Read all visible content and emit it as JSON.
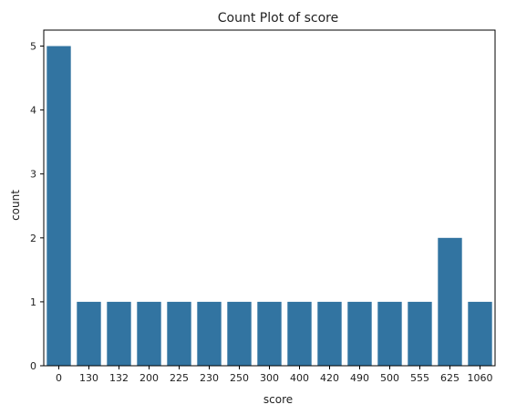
{
  "chart_data": {
    "type": "bar",
    "title": "Count Plot of score",
    "xlabel": "score",
    "ylabel": "count",
    "categories": [
      "0",
      "130",
      "132",
      "200",
      "225",
      "230",
      "250",
      "300",
      "400",
      "420",
      "490",
      "500",
      "555",
      "625",
      "1060"
    ],
    "values": [
      5,
      1,
      1,
      1,
      1,
      1,
      1,
      1,
      1,
      1,
      1,
      1,
      1,
      2,
      1
    ],
    "ylim": [
      0,
      5.25
    ],
    "yticks": [
      "0",
      "1",
      "2",
      "3",
      "4",
      "5"
    ],
    "grid": false,
    "bar_color": "#3274a1"
  }
}
